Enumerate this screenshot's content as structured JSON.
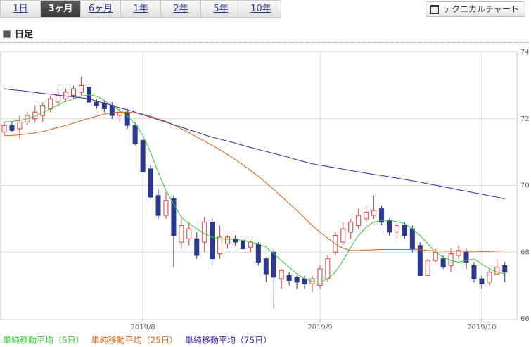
{
  "tabs": [
    "1日",
    "3ヶ月",
    "6ヶ月",
    "1年",
    "2年",
    "5年",
    "10年"
  ],
  "active_tab": 1,
  "technical_button": "テクニカルチャート",
  "header": "日足",
  "chart_data": {
    "type": "candlestick",
    "categories": [
      null,
      null,
      null,
      null,
      null,
      null,
      null,
      null,
      null,
      null,
      null,
      null,
      null,
      null,
      null,
      null,
      null,
      null,
      "2019/8",
      null,
      null,
      null,
      null,
      null,
      null,
      null,
      null,
      null,
      null,
      null,
      null,
      null,
      null,
      null,
      null,
      null,
      null,
      null,
      null,
      null,
      null,
      "2019/9",
      null,
      null,
      null,
      null,
      null,
      null,
      null,
      null,
      null,
      null,
      null,
      null,
      null,
      null,
      null,
      null,
      null,
      null,
      null,
      null,
      "2019/10",
      null,
      null,
      null
    ],
    "open": [
      71.6,
      71.8,
      71.7,
      71.9,
      72.0,
      72.1,
      72.3,
      72.5,
      72.6,
      72.7,
      72.8,
      72.95,
      72.5,
      72.45,
      72.4,
      72.1,
      72.2,
      71.8,
      71.35,
      70.5,
      69.7,
      69.1,
      69.6,
      68.3,
      68.4,
      68.4,
      68.3,
      68.9,
      67.95,
      68.25,
      68.4,
      68.35,
      68.15,
      68.25,
      67.8,
      68.0,
      67.2,
      67.3,
      67.25,
      67.2,
      67.05,
      67.0,
      67.2,
      68.0,
      68.3,
      68.6,
      68.8,
      69.0,
      69.1,
      69.3,
      68.95,
      68.6,
      68.8,
      68.7,
      68.2,
      67.3,
      67.75,
      67.8,
      67.6,
      67.9,
      68.0,
      67.6,
      67.2,
      67.1,
      67.35,
      67.6
    ],
    "high": [
      71.9,
      71.9,
      72.1,
      72.2,
      72.4,
      72.5,
      72.7,
      72.9,
      72.9,
      73.0,
      73.25,
      73.05,
      72.6,
      72.55,
      72.5,
      72.3,
      72.3,
      71.9,
      71.4,
      70.6,
      69.9,
      69.8,
      69.7,
      69.0,
      68.9,
      68.6,
      69.05,
      69.0,
      68.8,
      68.5,
      68.5,
      68.4,
      68.35,
      68.3,
      67.85,
      68.1,
      67.5,
      67.4,
      67.3,
      67.3,
      67.3,
      67.6,
      67.9,
      68.6,
      68.9,
      69.0,
      69.3,
      69.4,
      69.7,
      69.4,
      69.0,
      68.9,
      68.9,
      68.8,
      68.3,
      67.8,
      68.1,
      67.9,
      68.1,
      68.2,
      68.1,
      67.7,
      67.3,
      67.5,
      67.8,
      67.7
    ],
    "low": [
      71.5,
      71.6,
      71.4,
      71.8,
      71.9,
      71.9,
      72.2,
      72.4,
      72.5,
      72.6,
      72.7,
      72.4,
      72.3,
      72.2,
      72.0,
      71.9,
      71.7,
      71.2,
      70.4,
      69.6,
      69.0,
      69.0,
      67.55,
      68.1,
      68.2,
      67.8,
      68.0,
      67.6,
      67.8,
      68.1,
      68.2,
      68.0,
      68.0,
      67.6,
      67.1,
      66.3,
      66.9,
      67.0,
      66.9,
      66.9,
      66.8,
      66.9,
      67.1,
      67.9,
      68.2,
      68.4,
      68.7,
      68.9,
      69.0,
      68.8,
      68.5,
      68.4,
      68.4,
      68.0,
      67.3,
      67.3,
      67.7,
      67.5,
      67.4,
      67.8,
      67.5,
      67.1,
      66.9,
      67.0,
      67.3,
      67.1
    ],
    "close": [
      71.8,
      71.65,
      71.9,
      72.1,
      72.2,
      72.4,
      72.6,
      72.7,
      72.8,
      72.9,
      73.0,
      72.5,
      72.4,
      72.3,
      72.1,
      72.2,
      71.8,
      71.25,
      70.4,
      69.65,
      69.1,
      69.55,
      68.5,
      68.8,
      68.7,
      67.9,
      68.9,
      67.8,
      68.45,
      68.45,
      68.3,
      68.1,
      68.3,
      67.7,
      67.35,
      67.25,
      67.45,
      67.15,
      67.1,
      67.05,
      67.2,
      67.5,
      67.8,
      68.5,
      68.7,
      68.9,
      69.1,
      69.2,
      69.25,
      68.9,
      68.6,
      68.8,
      68.5,
      68.1,
      67.3,
      67.75,
      68.0,
      67.55,
      67.95,
      68.05,
      67.7,
      67.2,
      67.05,
      67.4,
      67.55,
      67.4
    ],
    "up_color": "#e03a3a",
    "down_color": "#2b3990",
    "series": [
      {
        "name": "単純移動平均（5日）",
        "color": "#33cc33",
        "values": [
          71.9,
          71.92,
          71.95,
          72.0,
          72.08,
          72.18,
          72.3,
          72.42,
          72.52,
          72.6,
          72.68,
          72.72,
          72.68,
          72.55,
          72.4,
          72.25,
          72.08,
          71.85,
          71.5,
          71.0,
          70.4,
          69.85,
          69.45,
          69.05,
          68.85,
          68.7,
          68.55,
          68.45,
          68.4,
          68.38,
          68.4,
          68.35,
          68.3,
          68.25,
          68.15,
          67.95,
          67.75,
          67.55,
          67.35,
          67.2,
          67.12,
          67.1,
          67.2,
          67.4,
          67.75,
          68.15,
          68.5,
          68.75,
          68.9,
          68.95,
          68.95,
          68.92,
          68.85,
          68.7,
          68.5,
          68.25,
          68.0,
          67.85,
          67.75,
          67.7,
          67.75,
          67.8,
          67.65,
          67.5,
          67.4,
          67.35
        ]
      },
      {
        "name": "単純移動平均（25日）",
        "color": "#e0600f",
        "values": [
          71.5,
          71.5,
          71.52,
          71.55,
          71.58,
          71.62,
          71.68,
          71.74,
          71.8,
          71.87,
          71.94,
          72.01,
          72.08,
          72.14,
          72.18,
          72.2,
          72.2,
          72.18,
          72.14,
          72.08,
          72.0,
          71.92,
          71.82,
          71.7,
          71.58,
          71.45,
          71.33,
          71.2,
          71.07,
          70.93,
          70.78,
          70.62,
          70.45,
          70.27,
          70.08,
          69.88,
          69.67,
          69.46,
          69.25,
          69.02,
          68.8,
          68.6,
          68.42,
          68.25,
          68.12,
          68.05,
          68.05,
          68.06,
          68.07,
          68.08,
          68.08,
          68.08,
          68.08,
          68.08,
          68.07,
          68.05,
          68.04,
          68.03,
          68.03,
          68.03,
          68.03,
          68.02,
          68.02,
          68.02,
          68.03,
          68.04
        ]
      },
      {
        "name": "単純移動平均（75日）",
        "color": "#4422aa",
        "values": [
          72.9,
          72.87,
          72.85,
          72.82,
          72.79,
          72.76,
          72.74,
          72.71,
          72.68,
          72.66,
          72.63,
          72.6,
          72.53,
          72.47,
          72.4,
          72.33,
          72.27,
          72.2,
          72.12,
          72.05,
          71.97,
          71.9,
          71.82,
          71.75,
          71.67,
          71.6,
          71.52,
          71.45,
          71.39,
          71.33,
          71.27,
          71.2,
          71.14,
          71.08,
          71.02,
          70.96,
          70.9,
          70.84,
          70.77,
          70.71,
          70.65,
          70.61,
          70.57,
          70.53,
          70.49,
          70.45,
          70.41,
          70.37,
          70.33,
          70.3,
          70.26,
          70.22,
          70.18,
          70.14,
          70.1,
          70.05,
          70.01,
          69.96,
          69.92,
          69.87,
          69.83,
          69.78,
          69.74,
          69.69,
          69.65,
          69.6
        ]
      }
    ],
    "ylim": [
      66,
      74
    ],
    "yticks": [
      66,
      68,
      70,
      72,
      74
    ],
    "grid": true
  }
}
